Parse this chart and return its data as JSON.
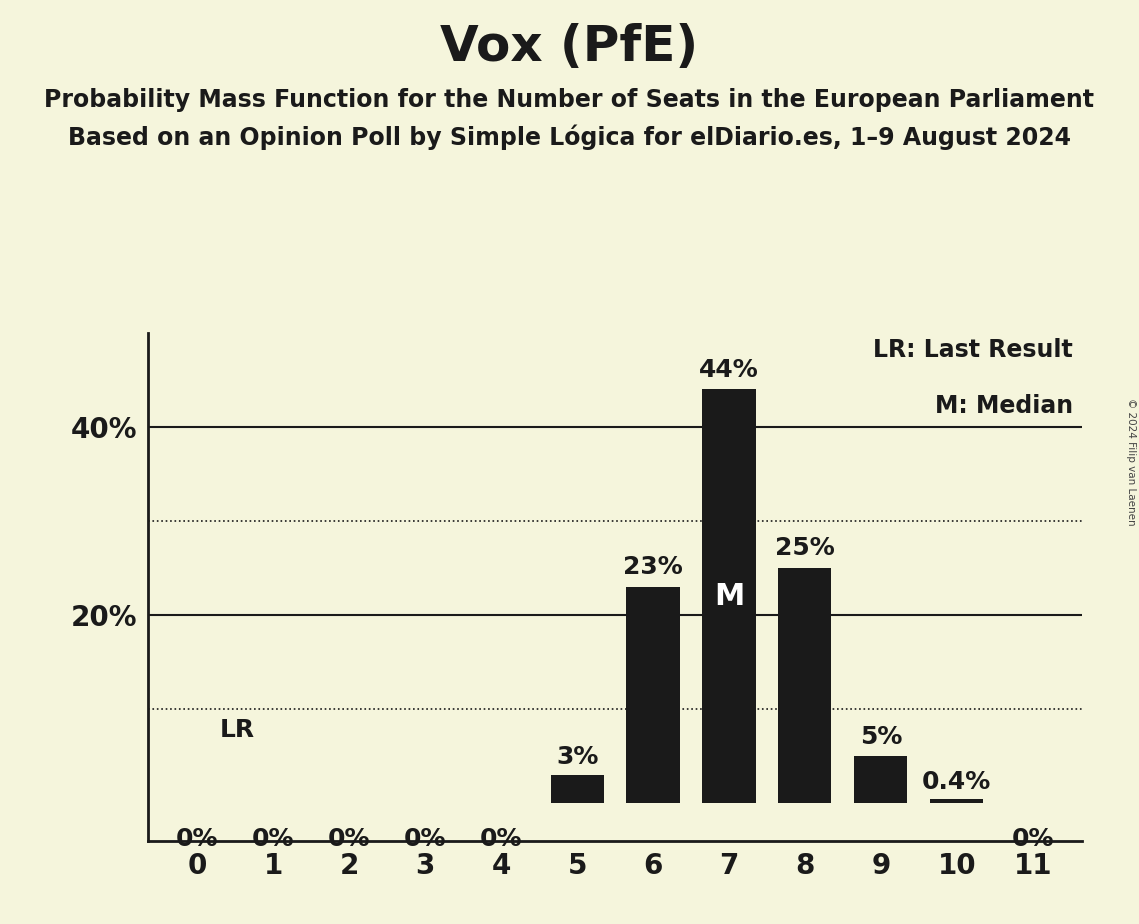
{
  "title": "Vox (PfE)",
  "subtitle1": "Probability Mass Function for the Number of Seats in the European Parliament",
  "subtitle2": "Based on an Opinion Poll by Simple Lógica for elDiario.es, 1–9 August 2024",
  "copyright": "© 2024 Filip van Laenen",
  "categories": [
    0,
    1,
    2,
    3,
    4,
    5,
    6,
    7,
    8,
    9,
    10,
    11
  ],
  "values": [
    0.0,
    0.0,
    0.0,
    0.0,
    0.0,
    3.0,
    23.0,
    44.0,
    25.0,
    5.0,
    0.4,
    0.0
  ],
  "bar_labels": [
    "0%",
    "0%",
    "0%",
    "0%",
    "0%",
    "3%",
    "23%",
    "44%",
    "25%",
    "5%",
    "0.4%",
    "0%"
  ],
  "bar_color": "#1a1a1a",
  "background_color": "#f5f5dc",
  "axis_color": "#1a1a1a",
  "grid_color_solid": "#1a1a1a",
  "grid_color_dotted": "#1a1a1a",
  "yticks": [
    20,
    40
  ],
  "ytick_labels": [
    "20%",
    "40%"
  ],
  "ylim": [
    0,
    50
  ],
  "solid_gridlines": [
    20,
    40
  ],
  "dotted_gridlines": [
    10,
    30
  ],
  "median_bar": 7,
  "median_label": "M",
  "lr_label": "LR",
  "legend_lr": "LR: Last Result",
  "legend_m": "M: Median",
  "title_fontsize": 36,
  "subtitle_fontsize": 17,
  "bar_label_fontsize": 18,
  "axis_tick_fontsize": 20,
  "legend_fontsize": 17,
  "lr_label_fontsize": 18,
  "median_label_fontsize": 22
}
